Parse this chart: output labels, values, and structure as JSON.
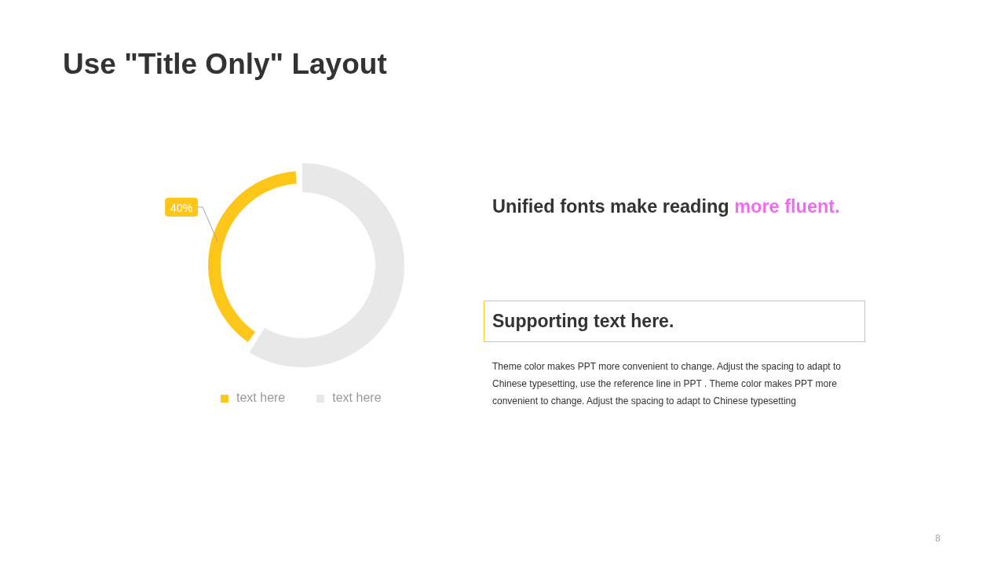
{
  "chart_data": {
    "type": "donut",
    "title": "Use \"Title Only\" Layout",
    "categories": [
      "text here",
      "text here"
    ],
    "values": [
      40,
      60
    ],
    "colors": [
      "#ffc61a",
      "#e8e8e8"
    ],
    "value_labels": [
      "40%",
      null
    ],
    "legend": "bottom",
    "annotations": [
      "Unified fonts make reading",
      "more fluent.",
      "Supporting text here.",
      "Theme color makes PPT more convenient to change. Adjust the spacing to adapt to Chinese typesetting, use the reference line in PPT . Theme color makes PPT more convenient to change. Adjust the spacing to adapt to Chinese typesetting",
      "8"
    ]
  }
}
